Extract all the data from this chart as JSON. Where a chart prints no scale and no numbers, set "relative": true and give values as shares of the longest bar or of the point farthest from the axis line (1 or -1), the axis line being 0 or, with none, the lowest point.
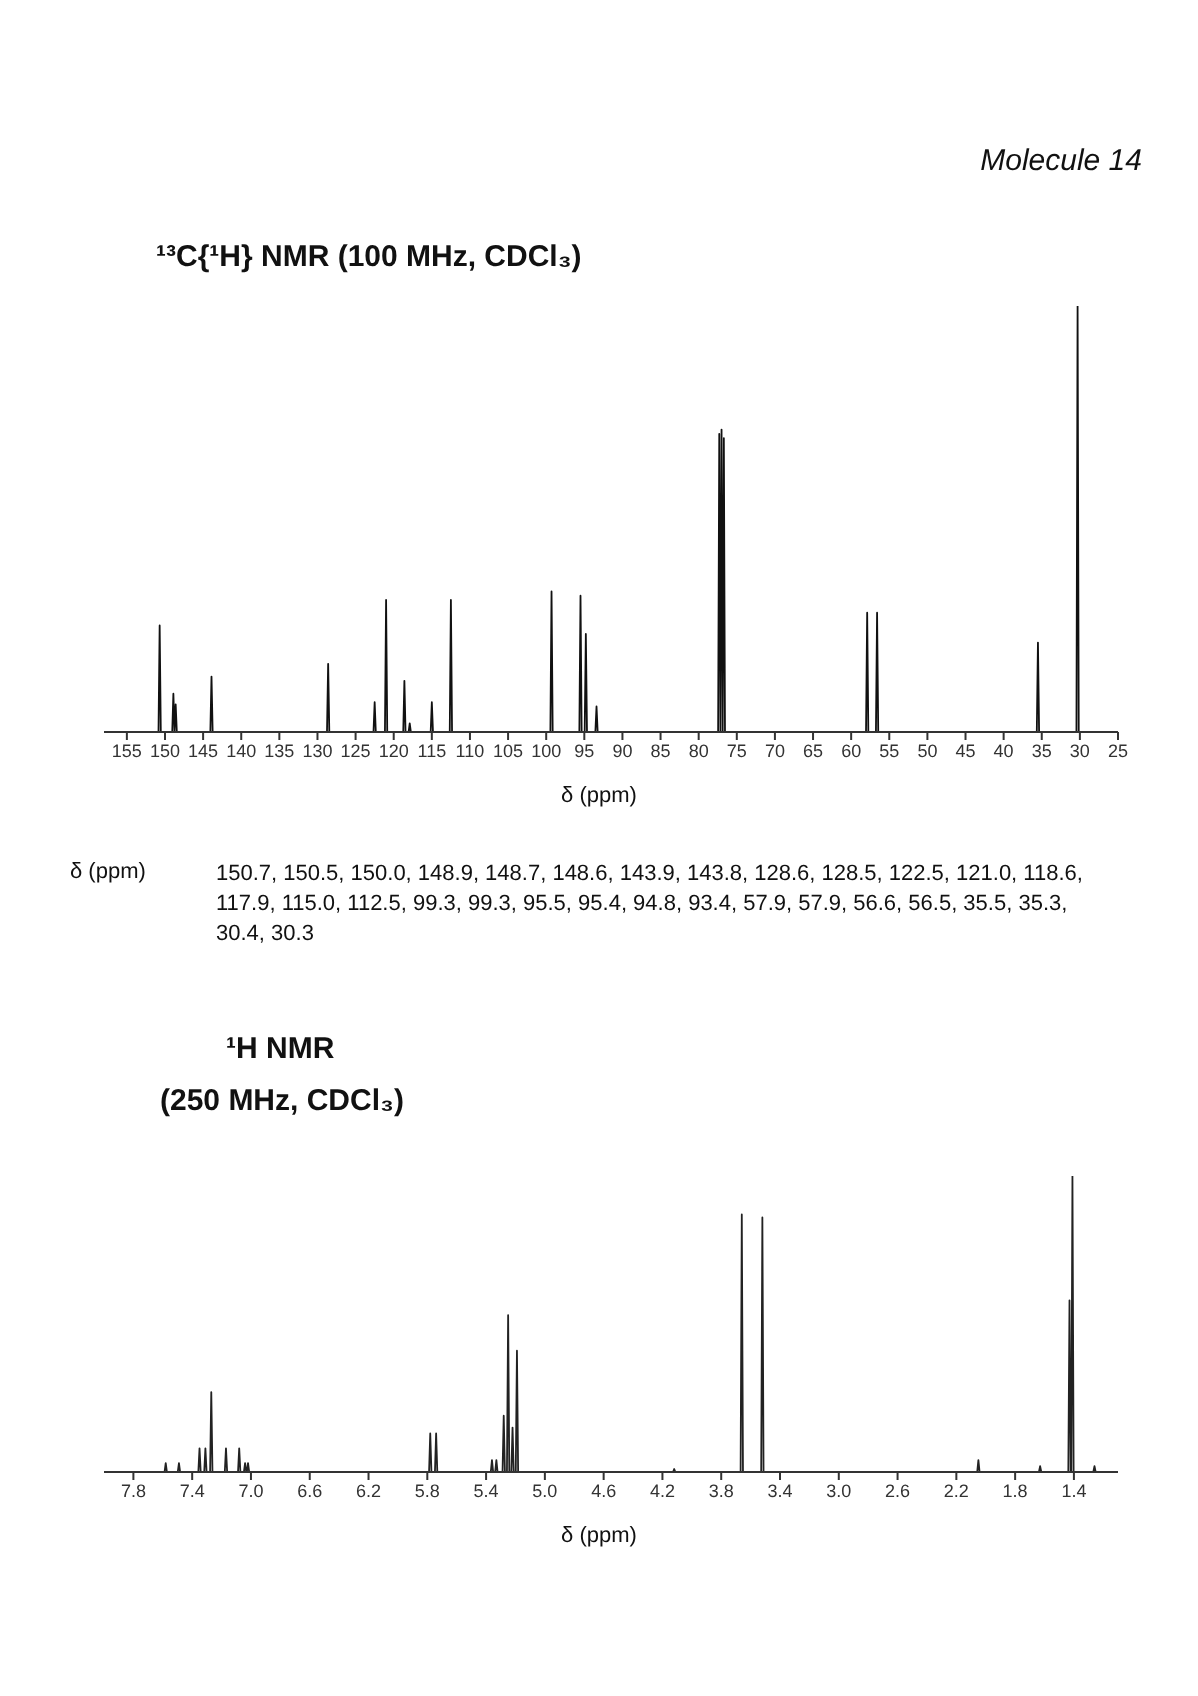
{
  "chart_data": [
    {
      "type": "line",
      "title": "¹³C{¹H} NMR (100 MHz, CDCl₃)",
      "xlabel": "δ (ppm)",
      "relative": true,
      "marker": "none",
      "annotations": [
        "Molecule 14",
        "δ (ppm)",
        "150.7, 150.5, 150.0, 148.9, 148.7, 148.6, 143.9, 143.8, 128.6, 128.5, 122.5, 121.0, 118.6, 117.9, 115.0, 112.5, 99.3, 99.3, 95.5, 95.4, 94.8, 93.4, 57.9, 57.9, 56.6, 56.5, 35.5, 35.3, 30.4, 30.3"
      ],
      "xlim": [
        158,
        25
      ],
      "xticks": [
        155,
        150,
        145,
        140,
        135,
        130,
        125,
        120,
        115,
        110,
        105,
        100,
        95,
        90,
        85,
        80,
        75,
        70,
        65,
        60,
        55,
        50,
        45,
        40,
        35,
        30,
        25
      ],
      "series": [
        {
          "color": "#111111",
          "x": [
            158,
            150.85,
            150.7,
            150.55,
            149.05,
            148.9,
            148.75,
            148.6,
            148.45,
            144.05,
            143.9,
            143.75,
            128.75,
            128.6,
            128.45,
            122.65,
            122.5,
            122.35,
            121.15,
            121.0,
            120.85,
            118.75,
            118.6,
            118.45,
            118.05,
            117.9,
            117.75,
            115.15,
            115.0,
            114.85,
            112.65,
            112.5,
            112.35,
            99.45,
            99.3,
            99.15,
            95.65,
            95.5,
            95.35,
            94.95,
            94.8,
            94.65,
            93.55,
            93.4,
            93.25,
            77.45,
            77.3,
            77.15,
            77.0,
            76.85,
            76.7,
            76.55,
            58.05,
            57.9,
            57.75,
            56.75,
            56.6,
            56.45,
            35.65,
            35.5,
            35.35,
            30.45,
            30.3,
            30.15,
            25
          ],
          "values": [
            0,
            0,
            0.25,
            0,
            0,
            0.09,
            0,
            0.065,
            0,
            0,
            0.13,
            0,
            0,
            0.16,
            0,
            0,
            0.07,
            0,
            0,
            0.31,
            0,
            0,
            0.12,
            0,
            0,
            0.02,
            0,
            0,
            0.07,
            0,
            0,
            0.31,
            0,
            0,
            0.33,
            0,
            0,
            0.32,
            0,
            0,
            0.23,
            0,
            0,
            0.06,
            0,
            0,
            0.7,
            0,
            0.71,
            0,
            0.69,
            0,
            0,
            0.28,
            0,
            0,
            0.28,
            0,
            0,
            0.21,
            0,
            0,
            1,
            0,
            0
          ]
        }
      ]
    },
    {
      "type": "line",
      "title": "¹H NMR",
      "subtitle": "(250 MHz, CDCl₃)",
      "xlabel": "δ (ppm)",
      "relative": true,
      "marker": "none",
      "xlim": [
        8.0,
        1.1
      ],
      "xticks": [
        7.8,
        7.4,
        {
          "value": 7,
          "label": "7.0"
        },
        6.6,
        6.2,
        5.8,
        5.4,
        {
          "value": 5,
          "label": "5.0"
        },
        4.6,
        4.2,
        3.8,
        3.4,
        {
          "value": 3,
          "label": "3.0"
        },
        2.6,
        2.2,
        1.8,
        1.4
      ],
      "series": [
        {
          "color": "#222222",
          "x": [
            8.0,
            7.588,
            7.58,
            7.572,
            7.498,
            7.49,
            7.482,
            7.358,
            7.35,
            7.342,
            7.318,
            7.31,
            7.302,
            7.278,
            7.27,
            7.262,
            7.178,
            7.17,
            7.162,
            7.088,
            7.08,
            7.072,
            7.048,
            7.04,
            7.032,
            7.028,
            7.02,
            7.012,
            5.788,
            5.78,
            5.772,
            5.748,
            5.74,
            5.732,
            5.368,
            5.36,
            5.352,
            5.338,
            5.33,
            5.322,
            5.288,
            5.28,
            5.272,
            5.258,
            5.25,
            5.242,
            5.228,
            5.22,
            5.212,
            5.198,
            5.19,
            5.182,
            4.128,
            4.12,
            4.112,
            3.668,
            3.66,
            3.652,
            3.528,
            3.52,
            3.512,
            2.058,
            2.05,
            2.042,
            1.638,
            1.63,
            1.622,
            1.438,
            1.43,
            1.422,
            1.418,
            1.41,
            1.402,
            1.268,
            1.26,
            1.252,
            1.1
          ],
          "values": [
            0,
            0,
            0.03,
            0,
            0,
            0.03,
            0,
            0,
            0.08,
            0,
            0,
            0.08,
            0,
            0,
            0.27,
            0,
            0,
            0.08,
            0,
            0,
            0.08,
            0,
            0,
            0.03,
            0,
            0,
            0.03,
            0,
            0,
            0.13,
            0,
            0,
            0.13,
            0,
            0,
            0.04,
            0,
            0,
            0.04,
            0,
            0,
            0.19,
            0,
            0,
            0.53,
            0,
            0,
            0.15,
            0,
            0,
            0.41,
            0,
            0,
            0.01,
            0,
            0,
            0.87,
            0,
            0,
            0.86,
            0,
            0,
            0.04,
            0,
            0,
            0.02,
            0,
            0,
            0.58,
            0,
            0,
            1,
            0,
            0,
            0.02,
            0,
            0
          ]
        }
      ]
    }
  ]
}
